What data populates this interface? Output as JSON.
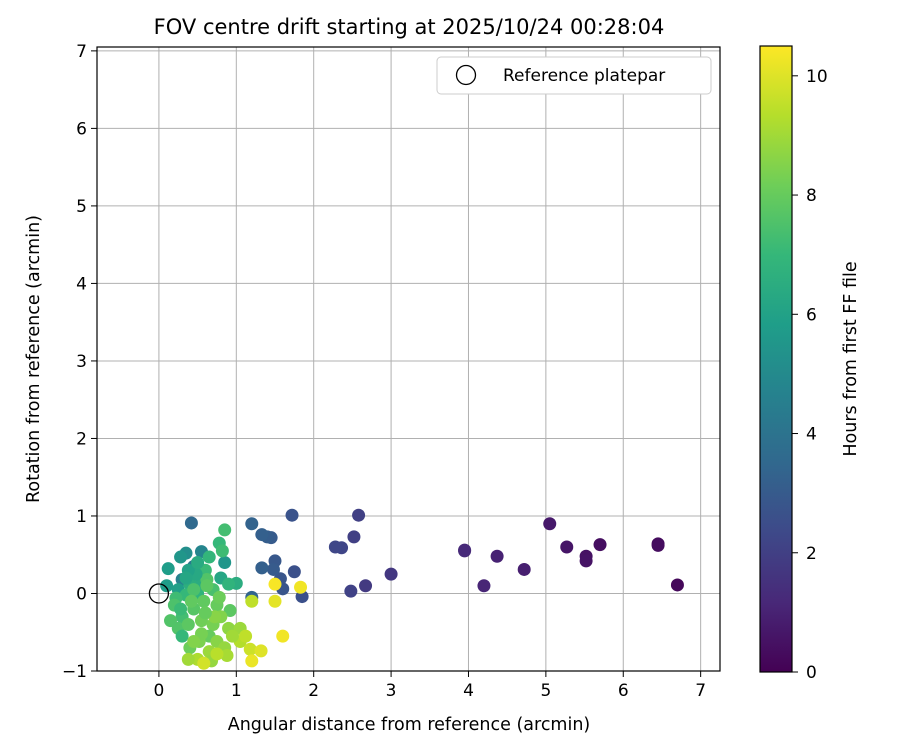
{
  "chart_data": {
    "type": "scatter",
    "title": "FOV centre drift starting at 2025/10/24 00:28:04",
    "xlabel": "Angular distance from reference (arcmin)",
    "ylabel": "Rotation from reference (arcmin)",
    "xlim": [
      -0.8,
      7.25
    ],
    "ylim": [
      -1,
      7.05
    ],
    "xticks": [
      0,
      1,
      2,
      3,
      4,
      5,
      6,
      7
    ],
    "yticks": [
      -1,
      0,
      1,
      2,
      3,
      4,
      5,
      6,
      7
    ],
    "grid": true,
    "legend": {
      "position": "top-right",
      "entries": [
        "Reference platepar"
      ]
    },
    "reference_point": {
      "x": 0,
      "y": 0,
      "marker": "hollow-circle"
    },
    "colorbar": {
      "label": "Hours from first FF file",
      "range": [
        0,
        10.5
      ],
      "ticks": [
        0,
        2,
        4,
        6,
        8,
        10
      ],
      "colormap": "viridis"
    },
    "points": [
      {
        "x": 6.7,
        "y": 0.11,
        "t": 0.2
      },
      {
        "x": 6.45,
        "y": 0.64,
        "t": 0.3
      },
      {
        "x": 6.45,
        "y": 0.62,
        "t": 0.35
      },
      {
        "x": 5.7,
        "y": 0.63,
        "t": 0.4
      },
      {
        "x": 5.52,
        "y": 0.48,
        "t": 0.5
      },
      {
        "x": 5.52,
        "y": 0.42,
        "t": 0.55
      },
      {
        "x": 5.27,
        "y": 0.6,
        "t": 0.6
      },
      {
        "x": 5.05,
        "y": 0.9,
        "t": 0.7
      },
      {
        "x": 4.72,
        "y": 0.31,
        "t": 0.9
      },
      {
        "x": 4.37,
        "y": 0.48,
        "t": 1.0
      },
      {
        "x": 4.2,
        "y": 0.1,
        "t": 1.1
      },
      {
        "x": 3.95,
        "y": 0.56,
        "t": 1.2
      },
      {
        "x": 3.95,
        "y": 0.55,
        "t": 1.25
      },
      {
        "x": 3.0,
        "y": 0.25,
        "t": 1.7
      },
      {
        "x": 2.67,
        "y": 0.1,
        "t": 1.8
      },
      {
        "x": 2.58,
        "y": 1.01,
        "t": 2.0
      },
      {
        "x": 2.52,
        "y": 0.73,
        "t": 2.0
      },
      {
        "x": 2.48,
        "y": 0.03,
        "t": 2.1
      },
      {
        "x": 2.36,
        "y": 0.59,
        "t": 2.2
      },
      {
        "x": 2.28,
        "y": 0.6,
        "t": 2.25
      },
      {
        "x": 1.85,
        "y": -0.04,
        "t": 2.6
      },
      {
        "x": 1.75,
        "y": 0.28,
        "t": 2.6
      },
      {
        "x": 1.72,
        "y": 1.01,
        "t": 2.7
      },
      {
        "x": 1.6,
        "y": 0.06,
        "t": 2.8
      },
      {
        "x": 1.57,
        "y": 0.19,
        "t": 2.8
      },
      {
        "x": 1.5,
        "y": 0.42,
        "t": 2.9
      },
      {
        "x": 1.48,
        "y": 0.31,
        "t": 3.0
      },
      {
        "x": 1.45,
        "y": 0.72,
        "t": 3.0
      },
      {
        "x": 1.4,
        "y": 0.73,
        "t": 3.1
      },
      {
        "x": 1.33,
        "y": 0.76,
        "t": 3.2
      },
      {
        "x": 1.33,
        "y": 0.33,
        "t": 3.2
      },
      {
        "x": 1.2,
        "y": 0.9,
        "t": 3.3
      },
      {
        "x": 1.2,
        "y": -0.05,
        "t": 3.4
      },
      {
        "x": 1.0,
        "y": 0.13,
        "t": 6.5
      },
      {
        "x": 0.42,
        "y": 0.91,
        "t": 3.6
      },
      {
        "x": 0.45,
        "y": 0.35,
        "t": 4.2
      },
      {
        "x": 0.3,
        "y": 0.18,
        "t": 4.6
      },
      {
        "x": 0.55,
        "y": 0.54,
        "t": 4.8
      },
      {
        "x": 0.35,
        "y": 0.52,
        "t": 5.2
      },
      {
        "x": 0.28,
        "y": 0.47,
        "t": 5.5
      },
      {
        "x": 0.12,
        "y": 0.32,
        "t": 5.8
      },
      {
        "x": 0.1,
        "y": 0.1,
        "t": 5.8
      },
      {
        "x": 0.25,
        "y": 0.05,
        "t": 5.9
      },
      {
        "x": 0.85,
        "y": 0.4,
        "t": 5.5
      },
      {
        "x": 0.8,
        "y": 0.2,
        "t": 6.2
      },
      {
        "x": 0.9,
        "y": 0.12,
        "t": 6.8
      },
      {
        "x": 0.65,
        "y": 0.47,
        "t": 6.9
      },
      {
        "x": 0.78,
        "y": 0.65,
        "t": 7.0
      },
      {
        "x": 0.85,
        "y": 0.82,
        "t": 7.3
      },
      {
        "x": 0.82,
        "y": 0.55,
        "t": 7.2
      },
      {
        "x": 0.6,
        "y": 0.3,
        "t": 7.1
      },
      {
        "x": 0.55,
        "y": 0.15,
        "t": 6.5
      },
      {
        "x": 0.4,
        "y": 0.12,
        "t": 6.6
      },
      {
        "x": 0.35,
        "y": -0.02,
        "t": 7.0
      },
      {
        "x": 0.22,
        "y": -0.06,
        "t": 7.2
      },
      {
        "x": 0.5,
        "y": 0.0,
        "t": 6.8
      },
      {
        "x": 0.7,
        "y": 0.05,
        "t": 7.4
      },
      {
        "x": 0.62,
        "y": 0.18,
        "t": 7.6
      },
      {
        "x": 0.48,
        "y": 0.25,
        "t": 6.3
      },
      {
        "x": 0.38,
        "y": 0.3,
        "t": 6.0
      },
      {
        "x": 0.2,
        "y": -0.15,
        "t": 7.5
      },
      {
        "x": 0.45,
        "y": -0.2,
        "t": 7.7
      },
      {
        "x": 0.3,
        "y": -0.3,
        "t": 7.3
      },
      {
        "x": 0.58,
        "y": -0.1,
        "t": 7.9
      },
      {
        "x": 0.75,
        "y": -0.15,
        "t": 8.0
      },
      {
        "x": 0.92,
        "y": -0.22,
        "t": 7.8
      },
      {
        "x": 0.25,
        "y": -0.45,
        "t": 7.6
      },
      {
        "x": 0.3,
        "y": -0.55,
        "t": 7.0
      },
      {
        "x": 0.38,
        "y": -0.4,
        "t": 7.8
      },
      {
        "x": 0.55,
        "y": -0.35,
        "t": 8.2
      },
      {
        "x": 0.7,
        "y": -0.4,
        "t": 8.3
      },
      {
        "x": 0.65,
        "y": -0.55,
        "t": 8.0
      },
      {
        "x": 0.52,
        "y": -0.62,
        "t": 8.4
      },
      {
        "x": 0.4,
        "y": -0.7,
        "t": 8.1
      },
      {
        "x": 0.75,
        "y": -0.62,
        "t": 8.6
      },
      {
        "x": 0.85,
        "y": -0.7,
        "t": 8.8
      },
      {
        "x": 0.8,
        "y": -0.3,
        "t": 8.5
      },
      {
        "x": 0.9,
        "y": -0.45,
        "t": 8.7
      },
      {
        "x": 1.05,
        "y": -0.45,
        "t": 8.9
      },
      {
        "x": 0.65,
        "y": -0.75,
        "t": 8.9
      },
      {
        "x": 0.5,
        "y": -0.85,
        "t": 9.2
      },
      {
        "x": 0.38,
        "y": -0.85,
        "t": 9.0
      },
      {
        "x": 0.68,
        "y": -0.87,
        "t": 8.8
      },
      {
        "x": 0.88,
        "y": -0.8,
        "t": 9.1
      },
      {
        "x": 1.05,
        "y": -0.62,
        "t": 9.3
      },
      {
        "x": 1.12,
        "y": -0.55,
        "t": 9.5
      },
      {
        "x": 1.18,
        "y": -0.72,
        "t": 9.7
      },
      {
        "x": 1.2,
        "y": -0.87,
        "t": 10.2
      },
      {
        "x": 1.32,
        "y": -0.74,
        "t": 10.0
      },
      {
        "x": 1.6,
        "y": -0.55,
        "t": 10.3
      },
      {
        "x": 1.5,
        "y": -0.1,
        "t": 10.1
      },
      {
        "x": 1.5,
        "y": 0.12,
        "t": 10.4
      },
      {
        "x": 1.83,
        "y": 0.08,
        "t": 10.3
      },
      {
        "x": 1.2,
        "y": -0.1,
        "t": 9.5
      },
      {
        "x": 0.72,
        "y": -0.3,
        "t": 8.6
      },
      {
        "x": 0.55,
        "y": -0.52,
        "t": 8.3
      },
      {
        "x": 0.62,
        "y": 0.1,
        "t": 7.8
      },
      {
        "x": 0.45,
        "y": 0.05,
        "t": 7.5
      },
      {
        "x": 0.15,
        "y": -0.35,
        "t": 7.6
      },
      {
        "x": 0.28,
        "y": -0.2,
        "t": 7.1
      },
      {
        "x": 0.35,
        "y": 0.2,
        "t": 6.2
      },
      {
        "x": 0.5,
        "y": 0.4,
        "t": 6.4
      },
      {
        "x": 0.42,
        "y": -0.1,
        "t": 7.9
      },
      {
        "x": 0.78,
        "y": -0.05,
        "t": 8.1
      },
      {
        "x": 0.6,
        "y": -0.25,
        "t": 8.0
      },
      {
        "x": 0.95,
        "y": -0.55,
        "t": 9.0
      },
      {
        "x": 0.75,
        "y": -0.78,
        "t": 9.4
      },
      {
        "x": 0.58,
        "y": -0.9,
        "t": 9.8
      },
      {
        "x": 0.45,
        "y": -0.62,
        "t": 8.5
      }
    ]
  }
}
